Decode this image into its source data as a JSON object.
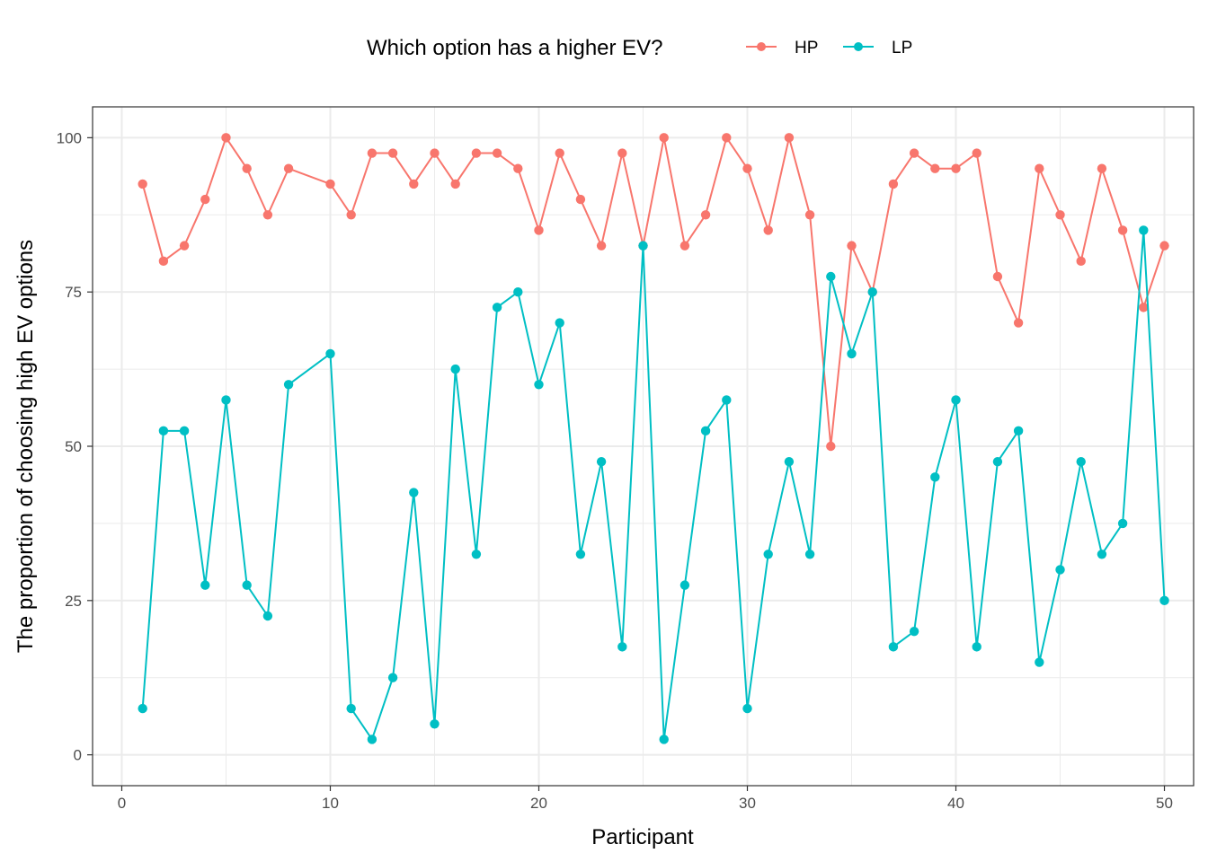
{
  "chart_data": {
    "type": "line",
    "title": "",
    "xlabel": "Participant",
    "ylabel": "The proportion of choosing high EV options",
    "legend": {
      "title": "Which option has a higher EV?",
      "placement": "top"
    },
    "xlim": [
      -1.4,
      51.4
    ],
    "ylim": [
      -5,
      105
    ],
    "x_ticks": [
      0,
      10,
      20,
      30,
      40,
      50
    ],
    "x_tick_labels": [
      "0",
      "10",
      "20",
      "30",
      "40",
      "50"
    ],
    "y_ticks": [
      0,
      25,
      50,
      75,
      100
    ],
    "y_tick_labels": [
      "0",
      "25",
      "50",
      "75",
      "100"
    ],
    "grid": true,
    "x": [
      1,
      2,
      3,
      4,
      5,
      6,
      7,
      8,
      10,
      11,
      12,
      13,
      14,
      15,
      16,
      17,
      18,
      19,
      20,
      21,
      22,
      23,
      24,
      25,
      26,
      27,
      28,
      29,
      30,
      31,
      32,
      33,
      34,
      35,
      36,
      37,
      38,
      39,
      40,
      41,
      42,
      43,
      44,
      45,
      46,
      47,
      48,
      49,
      50
    ],
    "series": [
      {
        "name": "HP",
        "color": "#F8766D",
        "values": [
          92.5,
          80,
          82.5,
          90,
          100,
          95,
          87.5,
          95,
          92.5,
          87.5,
          97.5,
          97.5,
          92.5,
          97.5,
          92.5,
          97.5,
          97.5,
          95,
          85,
          97.5,
          90,
          82.5,
          97.5,
          82.5,
          100,
          82.5,
          87.5,
          100,
          95,
          85,
          100,
          87.5,
          50,
          82.5,
          75,
          92.5,
          97.5,
          95,
          95,
          97.5,
          77.5,
          70,
          95,
          87.5,
          80,
          95,
          85,
          72.5,
          82.5
        ]
      },
      {
        "name": "LP",
        "color": "#00BFC4",
        "values": [
          7.5,
          52.5,
          52.5,
          27.5,
          57.5,
          27.5,
          22.5,
          60,
          65,
          7.5,
          2.5,
          12.5,
          42.5,
          5,
          62.5,
          32.5,
          72.5,
          75,
          60,
          70,
          32.5,
          47.5,
          17.5,
          82.5,
          2.5,
          27.5,
          52.5,
          57.5,
          7.5,
          32.5,
          47.5,
          32.5,
          77.5,
          65,
          75,
          17.5,
          20,
          45,
          57.5,
          17.5,
          47.5,
          52.5,
          15,
          30,
          47.5,
          32.5,
          37.5,
          85,
          25
        ]
      }
    ]
  }
}
